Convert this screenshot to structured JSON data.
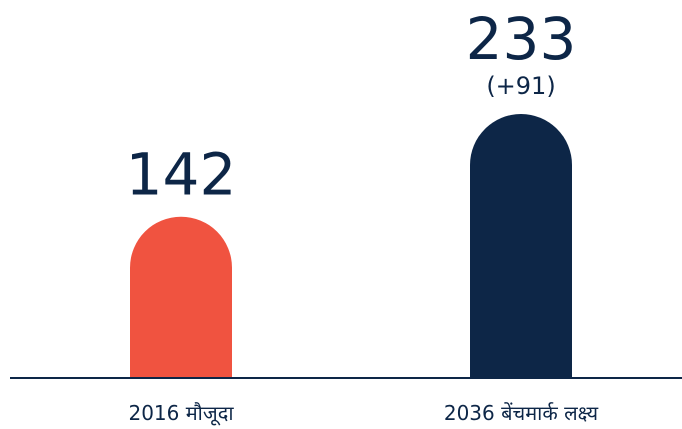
{
  "chart_data": {
    "type": "bar",
    "categories": [
      "2016 मौजूदा",
      "2036 बेंचमार्क लक्ष्य"
    ],
    "values": [
      142,
      233
    ],
    "colors": [
      "#f05340",
      "#0d2647"
    ],
    "annotations": [
      "(+91)"
    ]
  }
}
